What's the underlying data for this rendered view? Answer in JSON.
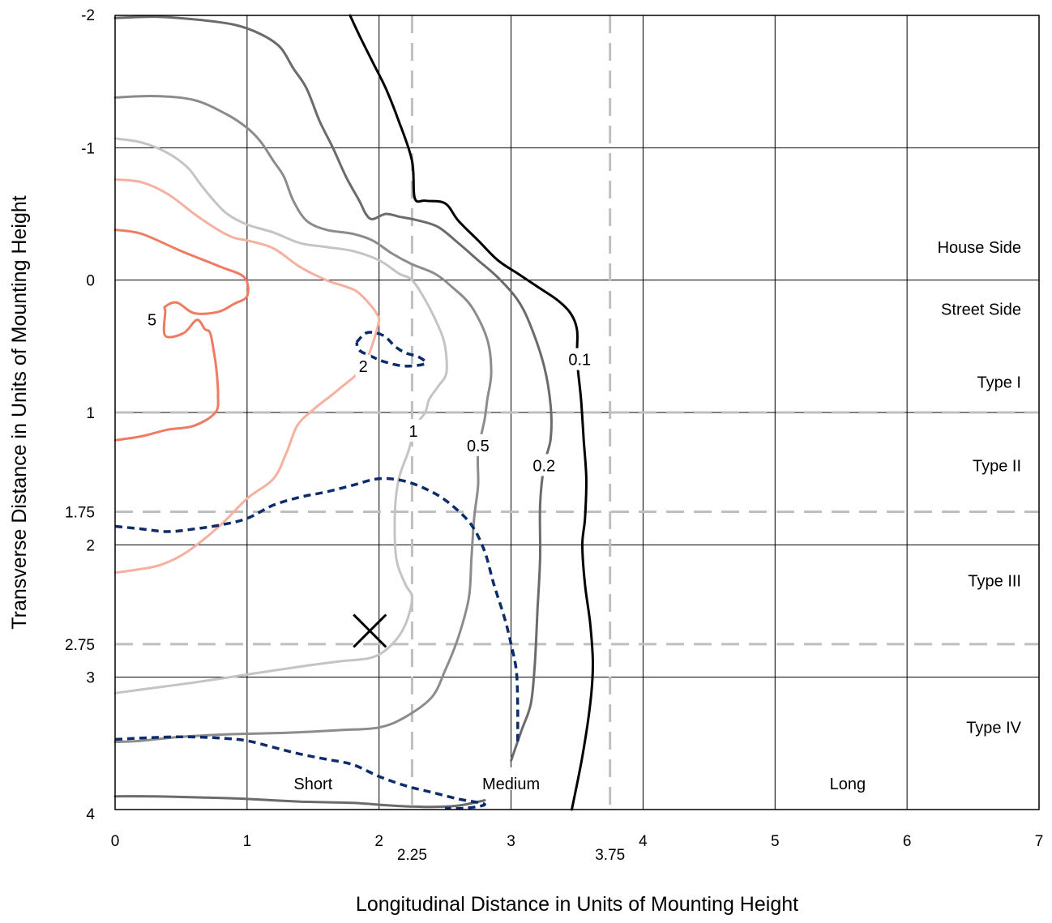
{
  "chart_data": {
    "type": "line",
    "subtype": "isofootcandle contour plot",
    "title": "",
    "xlabel": "Longitudinal Distance in Units of Mounting Height",
    "ylabel": "Transverse Distance in Units of Mounting Height",
    "xlim": [
      0,
      7
    ],
    "ylim": [
      -2,
      4
    ],
    "y_axis_inverted": true,
    "grid": true,
    "x_ticks": [
      "0",
      "1",
      "2",
      "3",
      "4",
      "5",
      "6",
      "7"
    ],
    "y_ticks": [
      "-2",
      "-1",
      "0",
      "1",
      "2",
      "3",
      "4"
    ],
    "extra_x_ticks": [
      {
        "value": 2.25,
        "label": "2.25"
      },
      {
        "value": 3.75,
        "label": "3.75"
      }
    ],
    "extra_y_ticks": [
      {
        "value": 1.75,
        "label": "1.75"
      },
      {
        "value": 2.75,
        "label": "2.75"
      }
    ],
    "reference_lines": {
      "vertical": [
        2.25,
        3.75
      ],
      "horizontal": [
        1,
        1.75,
        2.75
      ]
    },
    "region_labels": {
      "transverse": [
        {
          "label": "House Side",
          "y": -0.25
        },
        {
          "label": "Street Side",
          "y": 0.22
        },
        {
          "label": "Type I",
          "y": 0.77
        },
        {
          "label": "Type II",
          "y": 1.4
        },
        {
          "label": "Type III",
          "y": 2.27
        },
        {
          "label": "Type IV",
          "y": 3.38
        }
      ],
      "longitudinal": [
        {
          "label": "Short",
          "x": 1.5
        },
        {
          "label": "Medium",
          "x": 3.0
        },
        {
          "label": "Long",
          "x": 5.55
        }
      ]
    },
    "marker": {
      "symbol": "X",
      "x": 1.93,
      "y": 2.65
    },
    "contours": [
      {
        "name": "5",
        "color": "#f07b62",
        "dashed": false,
        "label_pos": [
          0.28,
          0.3
        ],
        "points": [
          [
            0.0,
            -0.38
          ],
          [
            0.2,
            -0.35
          ],
          [
            0.5,
            -0.22
          ],
          [
            0.8,
            -0.1
          ],
          [
            0.98,
            -0.02
          ],
          [
            1.0,
            0.12
          ],
          [
            0.9,
            0.18
          ],
          [
            0.78,
            0.24
          ],
          [
            0.6,
            0.25
          ],
          [
            0.47,
            0.17
          ],
          [
            0.38,
            0.2
          ],
          [
            0.38,
            0.24
          ],
          [
            0.38,
            0.42
          ],
          [
            0.52,
            0.4
          ],
          [
            0.62,
            0.3
          ],
          [
            0.68,
            0.37
          ],
          [
            0.72,
            0.4
          ],
          [
            0.75,
            0.55
          ],
          [
            0.77,
            0.7
          ],
          [
            0.78,
            0.87
          ],
          [
            0.76,
            1.0
          ],
          [
            0.6,
            1.1
          ],
          [
            0.4,
            1.13
          ],
          [
            0.2,
            1.18
          ],
          [
            0.0,
            1.21
          ]
        ]
      },
      {
        "name": "2",
        "color": "#f6b0a0",
        "dashed": false,
        "label_pos": [
          1.88,
          0.65
        ],
        "points": [
          [
            0.0,
            -0.76
          ],
          [
            0.2,
            -0.74
          ],
          [
            0.4,
            -0.65
          ],
          [
            0.6,
            -0.5
          ],
          [
            0.78,
            -0.38
          ],
          [
            0.9,
            -0.32
          ],
          [
            1.0,
            -0.3
          ],
          [
            1.2,
            -0.24
          ],
          [
            1.4,
            -0.1
          ],
          [
            1.6,
            0.0
          ],
          [
            1.75,
            0.05
          ],
          [
            1.85,
            0.1
          ],
          [
            1.98,
            0.25
          ],
          [
            1.99,
            0.35
          ],
          [
            1.88,
            0.65
          ],
          [
            1.7,
            0.82
          ],
          [
            1.5,
            0.98
          ],
          [
            1.38,
            1.1
          ],
          [
            1.3,
            1.3
          ],
          [
            1.2,
            1.5
          ],
          [
            1.0,
            1.65
          ],
          [
            0.8,
            1.85
          ],
          [
            0.55,
            2.05
          ],
          [
            0.35,
            2.15
          ],
          [
            0.15,
            2.19
          ],
          [
            0.0,
            2.21
          ]
        ]
      },
      {
        "name": "1",
        "color": "#c4c4c4",
        "dashed": false,
        "label_pos": [
          2.26,
          1.14
        ],
        "points": [
          [
            0.0,
            -1.07
          ],
          [
            0.2,
            -1.04
          ],
          [
            0.4,
            -0.96
          ],
          [
            0.55,
            -0.85
          ],
          [
            0.65,
            -0.72
          ],
          [
            0.75,
            -0.6
          ],
          [
            0.85,
            -0.5
          ],
          [
            1.0,
            -0.42
          ],
          [
            1.2,
            -0.36
          ],
          [
            1.4,
            -0.28
          ],
          [
            1.6,
            -0.25
          ],
          [
            1.8,
            -0.22
          ],
          [
            2.0,
            -0.15
          ],
          [
            2.15,
            -0.05
          ],
          [
            2.25,
            0.0
          ],
          [
            2.35,
            0.15
          ],
          [
            2.45,
            0.35
          ],
          [
            2.5,
            0.5
          ],
          [
            2.51,
            0.7
          ],
          [
            2.45,
            0.8
          ],
          [
            2.38,
            0.9
          ],
          [
            2.35,
            1.0
          ],
          [
            2.28,
            1.1
          ],
          [
            2.22,
            1.3
          ],
          [
            2.15,
            1.5
          ],
          [
            2.12,
            1.75
          ],
          [
            2.13,
            2.1
          ],
          [
            2.2,
            2.3
          ],
          [
            2.25,
            2.4
          ],
          [
            2.2,
            2.6
          ],
          [
            2.1,
            2.75
          ],
          [
            1.95,
            2.85
          ],
          [
            1.7,
            2.88
          ],
          [
            1.4,
            2.92
          ],
          [
            1.0,
            2.98
          ],
          [
            0.6,
            3.04
          ],
          [
            0.3,
            3.08
          ],
          [
            0.0,
            3.12
          ]
        ]
      },
      {
        "name": "0.5",
        "color": "#8c8c8c",
        "dashed": false,
        "label_pos": [
          2.75,
          1.25
        ],
        "points": [
          [
            0.0,
            -1.38
          ],
          [
            0.3,
            -1.39
          ],
          [
            0.6,
            -1.36
          ],
          [
            0.85,
            -1.25
          ],
          [
            1.0,
            -1.15
          ],
          [
            1.1,
            -1.05
          ],
          [
            1.2,
            -0.9
          ],
          [
            1.28,
            -0.78
          ],
          [
            1.35,
            -0.6
          ],
          [
            1.45,
            -0.45
          ],
          [
            1.6,
            -0.38
          ],
          [
            1.8,
            -0.35
          ],
          [
            1.95,
            -0.3
          ],
          [
            2.1,
            -0.2
          ],
          [
            2.25,
            -0.12
          ],
          [
            2.42,
            -0.05
          ],
          [
            2.55,
            0.05
          ],
          [
            2.7,
            0.2
          ],
          [
            2.82,
            0.45
          ],
          [
            2.85,
            0.7
          ],
          [
            2.82,
            0.9
          ],
          [
            2.8,
            1.05
          ],
          [
            2.75,
            1.3
          ],
          [
            2.75,
            1.55
          ],
          [
            2.72,
            1.8
          ],
          [
            2.7,
            2.1
          ],
          [
            2.68,
            2.4
          ],
          [
            2.6,
            2.7
          ],
          [
            2.5,
            2.95
          ],
          [
            2.4,
            3.15
          ],
          [
            2.2,
            3.3
          ],
          [
            2.0,
            3.38
          ],
          [
            1.7,
            3.4
          ],
          [
            1.3,
            3.42
          ],
          [
            0.9,
            3.43
          ],
          [
            0.5,
            3.45
          ],
          [
            0.2,
            3.48
          ],
          [
            0.0,
            3.49
          ]
        ]
      },
      {
        "name": "0.2",
        "color": "#6b6b6b",
        "dashed": false,
        "label_pos": [
          3.25,
          1.4
        ],
        "points": [
          [
            0.0,
            -1.98
          ],
          [
            0.3,
            -1.99
          ],
          [
            0.6,
            -1.97
          ],
          [
            0.9,
            -1.93
          ],
          [
            1.1,
            -1.86
          ],
          [
            1.25,
            -1.76
          ],
          [
            1.35,
            -1.6
          ],
          [
            1.45,
            -1.45
          ],
          [
            1.55,
            -1.2
          ],
          [
            1.65,
            -1.0
          ],
          [
            1.75,
            -0.78
          ],
          [
            1.85,
            -0.6
          ],
          [
            1.9,
            -0.5
          ],
          [
            1.95,
            -0.46
          ],
          [
            2.05,
            -0.5
          ],
          [
            2.15,
            -0.48
          ],
          [
            2.3,
            -0.45
          ],
          [
            2.45,
            -0.4
          ],
          [
            2.6,
            -0.28
          ],
          [
            2.75,
            -0.15
          ],
          [
            2.9,
            -0.02
          ],
          [
            3.05,
            0.15
          ],
          [
            3.15,
            0.35
          ],
          [
            3.25,
            0.65
          ],
          [
            3.3,
            0.95
          ],
          [
            3.3,
            1.2
          ],
          [
            3.25,
            1.4
          ],
          [
            3.22,
            1.7
          ],
          [
            3.22,
            2.1
          ],
          [
            3.2,
            2.5
          ],
          [
            3.18,
            2.9
          ],
          [
            3.15,
            3.2
          ],
          [
            3.08,
            3.4
          ],
          [
            3.0,
            3.63
          ]
        ]
      },
      {
        "name": "0.1",
        "color": "#000000",
        "dashed": false,
        "label_pos": [
          3.52,
          0.6
        ],
        "points": [
          [
            1.78,
            -2.0
          ],
          [
            1.85,
            -1.85
          ],
          [
            1.95,
            -1.65
          ],
          [
            2.05,
            -1.45
          ],
          [
            2.15,
            -1.2
          ],
          [
            2.25,
            -0.9
          ],
          [
            2.27,
            -0.62
          ],
          [
            2.35,
            -0.6
          ],
          [
            2.5,
            -0.58
          ],
          [
            2.6,
            -0.45
          ],
          [
            2.75,
            -0.3
          ],
          [
            2.9,
            -0.15
          ],
          [
            3.05,
            -0.05
          ],
          [
            3.2,
            0.05
          ],
          [
            3.35,
            0.15
          ],
          [
            3.45,
            0.25
          ],
          [
            3.5,
            0.38
          ],
          [
            3.5,
            0.6
          ],
          [
            3.53,
            0.9
          ],
          [
            3.55,
            1.2
          ],
          [
            3.57,
            1.5
          ],
          [
            3.56,
            1.8
          ],
          [
            3.54,
            2.0
          ],
          [
            3.56,
            2.3
          ],
          [
            3.6,
            2.6
          ],
          [
            3.62,
            2.9
          ],
          [
            3.6,
            3.2
          ],
          [
            3.54,
            3.6
          ],
          [
            3.46,
            4.0
          ]
        ]
      },
      {
        "name": "",
        "color": "#6b6b6b",
        "dashed": false,
        "label_pos": null,
        "points": [
          [
            0.0,
            3.9
          ],
          [
            0.3,
            3.9
          ],
          [
            0.7,
            3.91
          ],
          [
            1.0,
            3.92
          ],
          [
            1.4,
            3.94
          ],
          [
            1.8,
            3.95
          ],
          [
            2.1,
            3.97
          ],
          [
            2.35,
            3.98
          ],
          [
            2.6,
            3.97
          ],
          [
            2.8,
            3.93
          ]
        ]
      },
      {
        "name": "",
        "color": "#0d2c6c",
        "dashed": true,
        "label_pos": null,
        "points": [
          [
            1.83,
            0.47
          ],
          [
            1.9,
            0.4
          ],
          [
            1.98,
            0.4
          ],
          [
            2.05,
            0.43
          ],
          [
            2.12,
            0.5
          ],
          [
            2.2,
            0.55
          ],
          [
            2.3,
            0.58
          ],
          [
            2.35,
            0.63
          ],
          [
            2.2,
            0.65
          ],
          [
            2.05,
            0.62
          ],
          [
            1.95,
            0.58
          ],
          [
            1.85,
            0.53
          ],
          [
            1.83,
            0.47
          ]
        ]
      },
      {
        "name": "",
        "color": "#0d2c6c",
        "dashed": true,
        "label_pos": null,
        "points": [
          [
            0.0,
            1.86
          ],
          [
            0.2,
            1.88
          ],
          [
            0.4,
            1.9
          ],
          [
            0.6,
            1.88
          ],
          [
            0.8,
            1.85
          ],
          [
            1.0,
            1.8
          ],
          [
            1.2,
            1.7
          ],
          [
            1.4,
            1.64
          ],
          [
            1.6,
            1.6
          ],
          [
            1.8,
            1.55
          ],
          [
            2.0,
            1.5
          ],
          [
            2.2,
            1.52
          ],
          [
            2.4,
            1.6
          ],
          [
            2.55,
            1.7
          ],
          [
            2.7,
            1.85
          ],
          [
            2.8,
            2.05
          ],
          [
            2.87,
            2.3
          ],
          [
            2.95,
            2.55
          ],
          [
            3.0,
            2.75
          ],
          [
            3.04,
            2.95
          ],
          [
            3.05,
            3.2
          ],
          [
            3.05,
            3.5
          ]
        ]
      },
      {
        "name": "",
        "color": "#0d2c6c",
        "dashed": true,
        "label_pos": null,
        "points": [
          [
            0.0,
            3.47
          ],
          [
            0.2,
            3.46
          ],
          [
            0.5,
            3.45
          ],
          [
            0.8,
            3.46
          ],
          [
            1.0,
            3.48
          ],
          [
            1.2,
            3.53
          ],
          [
            1.4,
            3.58
          ],
          [
            1.6,
            3.62
          ],
          [
            1.8,
            3.66
          ],
          [
            2.0,
            3.75
          ],
          [
            2.2,
            3.82
          ],
          [
            2.4,
            3.87
          ],
          [
            2.6,
            3.92
          ],
          [
            2.8,
            3.96
          ],
          [
            2.65,
            3.99
          ],
          [
            2.5,
            3.99
          ]
        ]
      }
    ]
  }
}
